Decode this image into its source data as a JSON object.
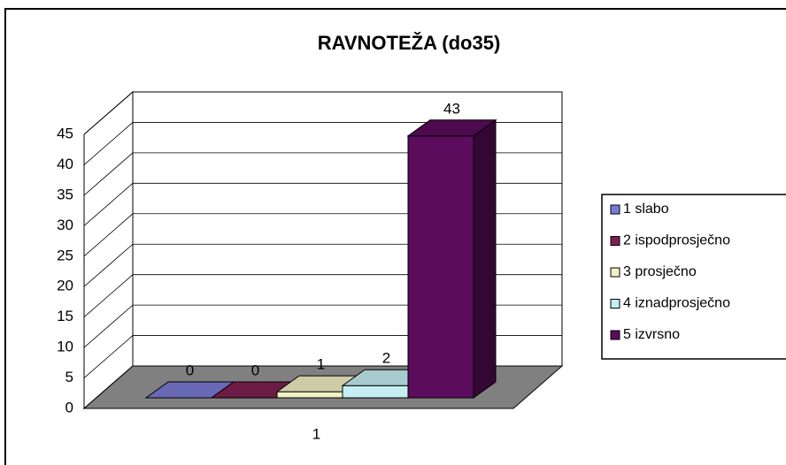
{
  "chart_data": {
    "type": "bar3d",
    "title": "RAVNOTEŽA (do35)",
    "categories": [
      "1"
    ],
    "series": [
      {
        "name": "1 slabo",
        "color": "#7b7bd6",
        "values": [
          0
        ]
      },
      {
        "name": "2 ispodprosječno",
        "color": "#7f2050",
        "values": [
          0
        ]
      },
      {
        "name": "3 prosječno",
        "color": "#f2f0c4",
        "values": [
          1
        ]
      },
      {
        "name": "4 iznadprosječno",
        "color": "#c4eef2",
        "values": [
          2
        ]
      },
      {
        "name": "5 izvrsno",
        "color": "#5c0c5c",
        "values": [
          43
        ]
      }
    ],
    "ylim": [
      0,
      45
    ],
    "yticks": [
      0,
      5,
      10,
      15,
      20,
      25,
      30,
      35,
      40,
      45
    ],
    "grid": true,
    "legend": "right"
  }
}
